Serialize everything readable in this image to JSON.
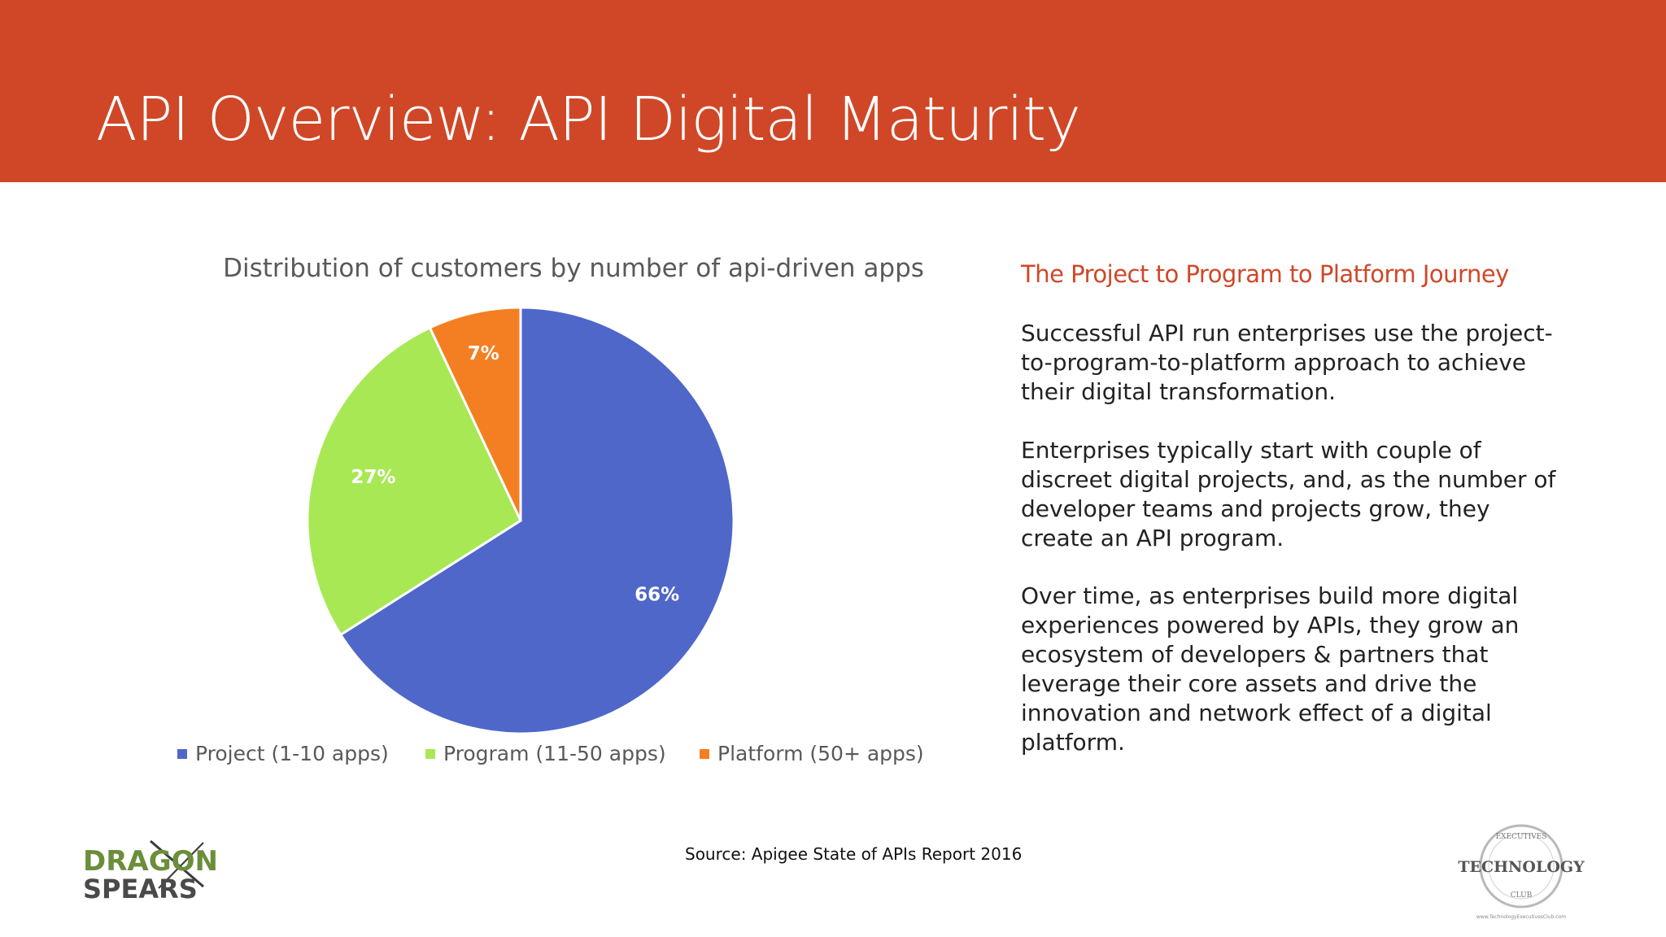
{
  "header": {
    "title": "API Overview: API Digital Maturity",
    "background": "#D04727"
  },
  "chart_data": {
    "type": "pie",
    "title": "Distribution of customers by number of api-driven apps",
    "slices": [
      {
        "label": "Project (1-10 apps)",
        "value": 66,
        "display": "66%",
        "color": "#4F67C9"
      },
      {
        "label": "Program (11-50 apps)",
        "value": 27,
        "display": "27%",
        "color": "#A8E855"
      },
      {
        "label": "Platform (50+ apps)",
        "value": 7,
        "display": "7%",
        "color": "#F47F23"
      }
    ],
    "start": "12 o'clock",
    "direction": "clockwise",
    "legend_position": "bottom"
  },
  "right_panel": {
    "heading": "The Project to Program to Platform Journey",
    "paragraphs": [
      "Successful API run enterprises use the project-to-program-to-platform approach to achieve their digital transformation.",
      "Enterprises typically start with couple of discreet digital projects, and, as the number of developer teams and projects grow, they create an API program.",
      "Over time, as enterprises build more digital experiences powered by APIs, they grow an ecosystem of developers & partners that leverage their core assets and drive the innovation and network effect of a digital platform."
    ]
  },
  "footer": {
    "source": "Source: Apigee State of APIs Report 2016",
    "logo_left_line1": "DRAGON",
    "logo_left_line2": "SPEARS",
    "logo_right_text": "TECHNOLOGY",
    "logo_right_ring_top": "EXECUTIVES",
    "logo_right_ring_bottom": "CLUB",
    "logo_right_url": "www.TechnologyExecutivesClub.com"
  }
}
